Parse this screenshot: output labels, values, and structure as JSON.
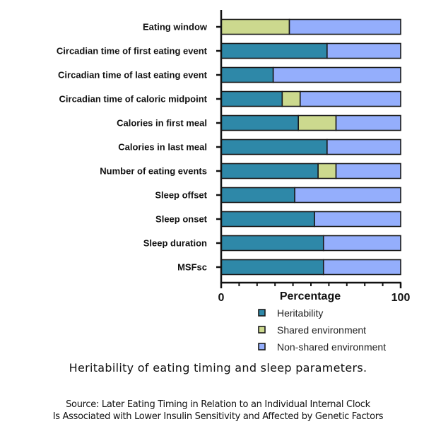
{
  "chart_data": {
    "type": "bar",
    "orientation": "horizontal",
    "stacked": true,
    "title": "Heritability of eating timing and sleep parameters.",
    "xlabel": "Percentage",
    "ylabel": "",
    "xlim": [
      0,
      100
    ],
    "x_tick_labels": [
      "0",
      "100"
    ],
    "x_minor_tick_step": 10,
    "grid": false,
    "legend_position": "bottom",
    "categories": [
      "Eating window",
      "Circadian time of first eating event",
      "Circadian time of last eating event",
      "Circadian time of caloric midpoint",
      "Calories in first meal",
      "Calories in last meal",
      "Number of eating events",
      "Sleep offset",
      "Sleep onset",
      "Sleep duration",
      "MSFsc"
    ],
    "series": [
      {
        "name": "Heritability",
        "color": "#2e88a8",
        "values": [
          0,
          59,
          29,
          34,
          43,
          59,
          54,
          41,
          52,
          57,
          57
        ]
      },
      {
        "name": "Shared environment",
        "color": "#ccd98e",
        "values": [
          38,
          0,
          0,
          10,
          21,
          0,
          10,
          0,
          0,
          0,
          0
        ]
      },
      {
        "name": "Non-shared environment",
        "color": "#94aefc",
        "values": [
          62,
          41,
          71,
          56,
          36,
          41,
          36,
          59,
          48,
          43,
          43
        ]
      }
    ]
  },
  "caption": {
    "title": "Heritability of eating timing and sleep parameters.",
    "source_line1": "Source: Later Eating Timing in Relation to an Individual Internal Clock",
    "source_line2": "Is Associated with Lower Insulin Sensitivity and Affected by Genetic Factors"
  }
}
